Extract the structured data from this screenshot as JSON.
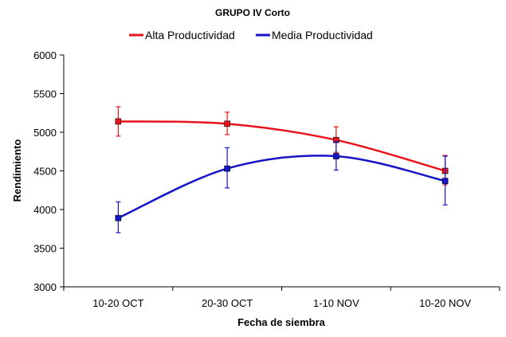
{
  "chart_data": {
    "type": "line",
    "title": "GRUPO IV Corto",
    "xlabel": "Fecha de siembra",
    "ylabel": "Rendimiento",
    "categories": [
      "10-20 OCT",
      "20-30 OCT",
      "1-10 NOV",
      "10-20 NOV"
    ],
    "ylim": [
      3000,
      6000
    ],
    "yticks": [
      3000,
      3500,
      4000,
      4500,
      5000,
      5500,
      6000
    ],
    "grid": false,
    "legend_position": "top",
    "series": [
      {
        "name": "Alta Productividad",
        "color": "#e8141b",
        "values": [
          5140,
          5110,
          4900,
          4500
        ],
        "error_low": [
          4950,
          4970,
          4740,
          4320
        ],
        "error_high": [
          5330,
          5260,
          5070,
          4700
        ]
      },
      {
        "name": "Media Productividad",
        "color": "#1414c8",
        "values": [
          3890,
          4530,
          4690,
          4370
        ],
        "error_low": [
          3700,
          4280,
          4510,
          4060
        ],
        "error_high": [
          4100,
          4800,
          4880,
          4690
        ]
      }
    ]
  }
}
